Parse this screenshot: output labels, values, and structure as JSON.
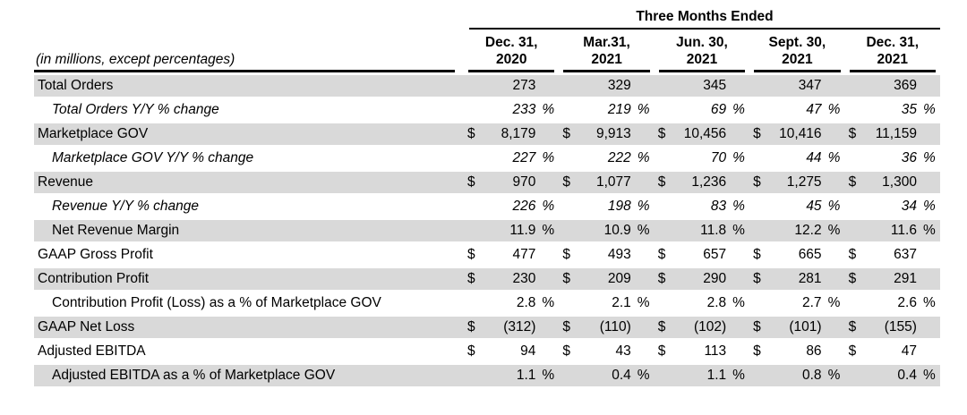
{
  "table": {
    "title": "Three Months Ended",
    "label_header": "(in millions, except percentages)",
    "currency_symbol": "$",
    "percent_symbol": "%",
    "colors": {
      "row_shade": "#d9d9d9",
      "rule_line": "#000000",
      "background": "#ffffff"
    },
    "columns": [
      {
        "period": "Dec. 31,",
        "year": "2020"
      },
      {
        "period": "Mar.31,",
        "year": "2021"
      },
      {
        "period": "Jun. 30,",
        "year": "2021"
      },
      {
        "period": "Sept. 30,",
        "year": "2021"
      },
      {
        "period": "Dec. 31,",
        "year": "2021"
      }
    ],
    "rows": [
      {
        "label": "Total Orders",
        "shaded": true,
        "indent": false,
        "italic": false,
        "currency": false,
        "percent": false,
        "values": [
          "273",
          "329",
          "345",
          "347",
          "369"
        ]
      },
      {
        "label": "Total Orders Y/Y % change",
        "shaded": false,
        "indent": true,
        "italic": true,
        "currency": false,
        "percent": true,
        "values": [
          "233",
          "219",
          "69",
          "47",
          "35"
        ]
      },
      {
        "label": "Marketplace GOV",
        "shaded": true,
        "indent": false,
        "italic": false,
        "currency": true,
        "percent": false,
        "values": [
          "8,179",
          "9,913",
          "10,456",
          "10,416",
          "11,159"
        ]
      },
      {
        "label": "Marketplace GOV Y/Y % change",
        "shaded": false,
        "indent": true,
        "italic": true,
        "currency": false,
        "percent": true,
        "values": [
          "227",
          "222",
          "70",
          "44",
          "36"
        ]
      },
      {
        "label": "Revenue",
        "shaded": true,
        "indent": false,
        "italic": false,
        "currency": true,
        "percent": false,
        "values": [
          "970",
          "1,077",
          "1,236",
          "1,275",
          "1,300"
        ]
      },
      {
        "label": "Revenue Y/Y % change",
        "shaded": false,
        "indent": true,
        "italic": true,
        "currency": false,
        "percent": true,
        "values": [
          "226",
          "198",
          "83",
          "45",
          "34"
        ]
      },
      {
        "label": "Net Revenue Margin",
        "shaded": true,
        "indent": true,
        "italic": false,
        "currency": false,
        "percent": true,
        "values": [
          "11.9",
          "10.9",
          "11.8",
          "12.2",
          "11.6"
        ]
      },
      {
        "label": "GAAP Gross Profit",
        "shaded": false,
        "indent": false,
        "italic": false,
        "currency": true,
        "percent": false,
        "values": [
          "477",
          "493",
          "657",
          "665",
          "637"
        ]
      },
      {
        "label": "Contribution Profit",
        "shaded": true,
        "indent": false,
        "italic": false,
        "currency": true,
        "percent": false,
        "values": [
          "230",
          "209",
          "290",
          "281",
          "291"
        ]
      },
      {
        "label": "Contribution Profit (Loss) as a % of Marketplace GOV",
        "shaded": false,
        "indent": true,
        "italic": false,
        "currency": false,
        "percent": true,
        "values": [
          "2.8",
          "2.1",
          "2.8",
          "2.7",
          "2.6"
        ]
      },
      {
        "label": "GAAP Net Loss",
        "shaded": true,
        "indent": false,
        "italic": false,
        "currency": true,
        "percent": false,
        "values": [
          "(312)",
          "(110)",
          "(102)",
          "(101)",
          "(155)"
        ]
      },
      {
        "label": "Adjusted EBITDA",
        "shaded": false,
        "indent": false,
        "italic": false,
        "currency": true,
        "percent": false,
        "values": [
          "94",
          "43",
          "113",
          "86",
          "47"
        ]
      },
      {
        "label": "Adjusted EBITDA as a % of Marketplace GOV",
        "shaded": true,
        "indent": true,
        "italic": false,
        "currency": false,
        "percent": true,
        "values": [
          "1.1",
          "0.4",
          "1.1",
          "0.8",
          "0.4"
        ]
      }
    ]
  },
  "chart_data": {
    "type": "table",
    "title": "Three Months Ended",
    "note": "(in millions, except percentages)",
    "columns": [
      "Dec. 31, 2020",
      "Mar.31, 2021",
      "Jun. 30, 2021",
      "Sept. 30, 2021",
      "Dec. 31, 2021"
    ],
    "rows": [
      {
        "metric": "Total Orders",
        "values": [
          273,
          329,
          345,
          347,
          369
        ]
      },
      {
        "metric": "Total Orders Y/Y % change",
        "values": [
          "233 %",
          "219 %",
          "69 %",
          "47 %",
          "35 %"
        ]
      },
      {
        "metric": "Marketplace GOV",
        "values": [
          "$ 8,179",
          "$ 9,913",
          "$ 10,456",
          "$ 10,416",
          "$ 11,159"
        ]
      },
      {
        "metric": "Marketplace GOV Y/Y % change",
        "values": [
          "227 %",
          "222 %",
          "70 %",
          "44 %",
          "36 %"
        ]
      },
      {
        "metric": "Revenue",
        "values": [
          "$ 970",
          "$ 1,077",
          "$ 1,236",
          "$ 1,275",
          "$ 1,300"
        ]
      },
      {
        "metric": "Revenue Y/Y % change",
        "values": [
          "226 %",
          "198 %",
          "83 %",
          "45 %",
          "34 %"
        ]
      },
      {
        "metric": "Net Revenue Margin",
        "values": [
          "11.9 %",
          "10.9 %",
          "11.8 %",
          "12.2 %",
          "11.6 %"
        ]
      },
      {
        "metric": "GAAP Gross Profit",
        "values": [
          "$ 477",
          "$ 493",
          "$ 657",
          "$ 665",
          "$ 637"
        ]
      },
      {
        "metric": "Contribution Profit",
        "values": [
          "$ 230",
          "$ 209",
          "$ 290",
          "$ 281",
          "$ 291"
        ]
      },
      {
        "metric": "Contribution Profit (Loss) as a % of Marketplace GOV",
        "values": [
          "2.8 %",
          "2.1 %",
          "2.8 %",
          "2.7 %",
          "2.6 %"
        ]
      },
      {
        "metric": "GAAP Net Loss",
        "values": [
          "$ (312)",
          "$ (110)",
          "$ (102)",
          "$ (101)",
          "$ (155)"
        ]
      },
      {
        "metric": "Adjusted EBITDA",
        "values": [
          "$ 94",
          "$ 43",
          "$ 113",
          "$ 86",
          "$ 47"
        ]
      },
      {
        "metric": "Adjusted EBITDA as a % of Marketplace GOV",
        "values": [
          "1.1 %",
          "0.4 %",
          "1.1 %",
          "0.8 %",
          "0.4 %"
        ]
      }
    ]
  }
}
